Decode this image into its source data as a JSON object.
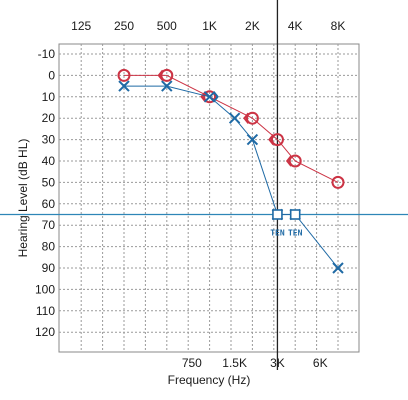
{
  "chart_data": {
    "type": "line",
    "xlabel": "Frequency (Hz)",
    "ylabel": "Hearing Level (dB HL)",
    "x_axis_scale": "log",
    "y_axis_inverted": true,
    "xlim": [
      125,
      8000
    ],
    "ylim": [
      -10,
      120
    ],
    "grid": true,
    "top_ticks": [
      {
        "f": 125,
        "label": "125"
      },
      {
        "f": 250,
        "label": "250"
      },
      {
        "f": 500,
        "label": "500"
      },
      {
        "f": 1000,
        "label": "1K"
      },
      {
        "f": 2000,
        "label": "2K"
      },
      {
        "f": 4000,
        "label": "4K"
      },
      {
        "f": 8000,
        "label": "8K"
      }
    ],
    "bottom_ticks": [
      {
        "f": 750,
        "label": "750"
      },
      {
        "f": 1500,
        "label": "1.5K"
      },
      {
        "f": 3000,
        "label": "3K"
      },
      {
        "f": 6000,
        "label": "6K"
      }
    ],
    "y_ticks": [
      -10,
      0,
      10,
      20,
      30,
      40,
      50,
      60,
      70,
      80,
      90,
      100,
      110,
      120
    ],
    "reference_lines": {
      "horizontal_db": 65,
      "vertical_hz": 3000,
      "color": "#2e86b7"
    },
    "series": [
      {
        "marker": "circle",
        "color": "#cc3344",
        "line_style": "solid",
        "points": [
          {
            "f": 250,
            "db": 0
          },
          {
            "f": 500,
            "db": 0
          },
          {
            "f": 1000,
            "db": 10
          },
          {
            "f": 2000,
            "db": 20
          },
          {
            "f": 3000,
            "db": 30
          },
          {
            "f": 4000,
            "db": 40
          },
          {
            "f": 8000,
            "db": 50
          }
        ]
      },
      {
        "marker": "bracket-left",
        "color": "#cc3344",
        "line_style": "none",
        "points": [
          {
            "f": 500,
            "db": 0
          },
          {
            "f": 1000,
            "db": 10
          },
          {
            "f": 2000,
            "db": 20
          },
          {
            "f": 3000,
            "db": 30
          },
          {
            "f": 4000,
            "db": 40
          }
        ]
      },
      {
        "marker": "x",
        "color": "#1f6aa5",
        "line_style": "solid",
        "points": [
          {
            "f": 250,
            "db": 5
          },
          {
            "f": 500,
            "db": 5
          },
          {
            "f": 1000,
            "db": 10
          },
          {
            "f": 1500,
            "db": 20
          },
          {
            "f": 2000,
            "db": 30
          },
          {
            "f": 3000,
            "db": 65
          },
          {
            "f": 4000,
            "db": 65
          },
          {
            "f": 8000,
            "db": 90
          }
        ]
      },
      {
        "marker": "bracket-right",
        "color": "#1f6aa5",
        "line_style": "none",
        "points": [
          {
            "f": 1000,
            "db": 10
          }
        ]
      },
      {
        "marker": "square",
        "color": "#1f6aa5",
        "line_style": "none",
        "points": [
          {
            "f": 3000,
            "db": 65
          },
          {
            "f": 4000,
            "db": 65
          }
        ]
      }
    ],
    "annotations": [
      {
        "f": 3000,
        "db": 65,
        "text": "TEN"
      },
      {
        "f": 4000,
        "db": 65,
        "text": "TEN"
      }
    ]
  }
}
